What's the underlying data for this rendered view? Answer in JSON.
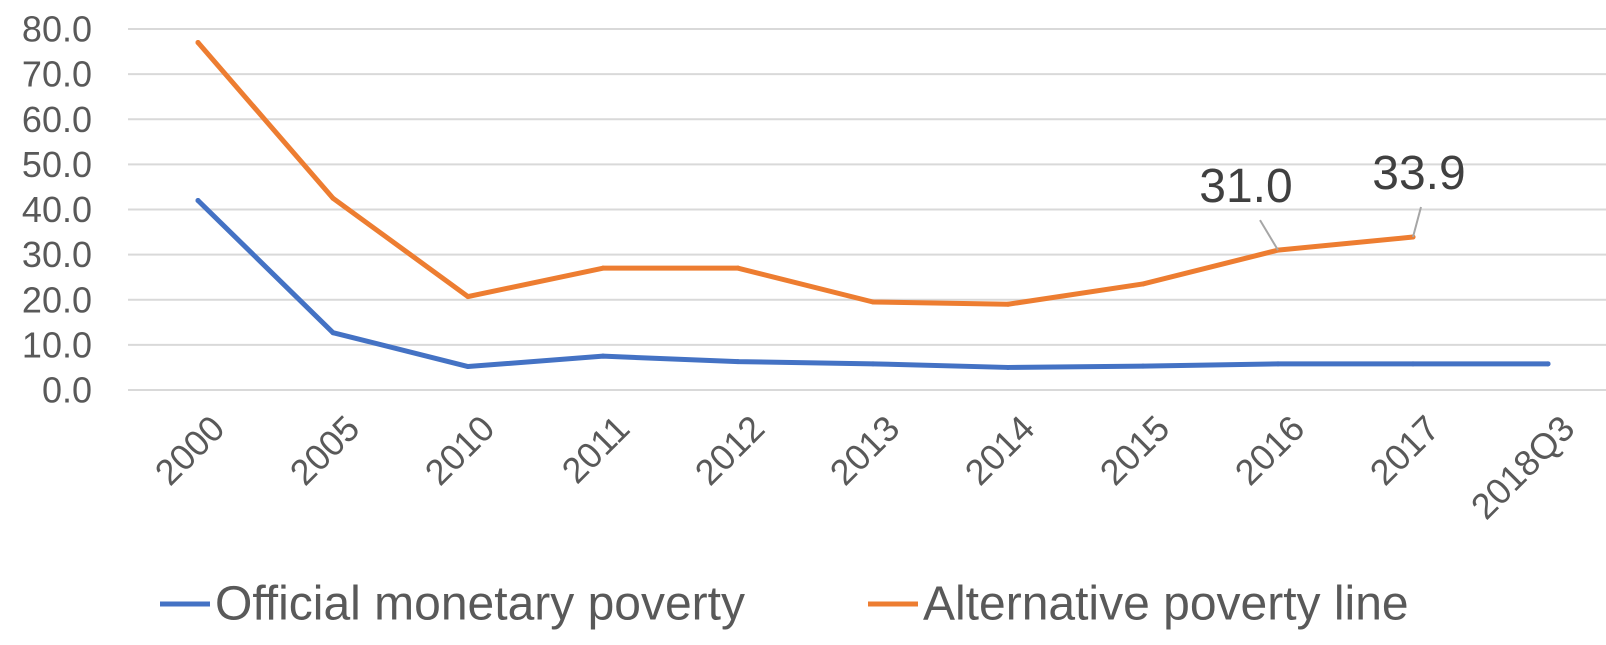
{
  "chart_data": {
    "type": "line",
    "title": "",
    "xlabel": "",
    "ylabel": "",
    "categories": [
      "2000",
      "2005",
      "2010",
      "2011",
      "2012",
      "2013",
      "2014",
      "2015",
      "2016",
      "2017",
      "2018Q3"
    ],
    "ylim": [
      0,
      80
    ],
    "yticks": [
      "0.0",
      "10.0",
      "20.0",
      "30.0",
      "40.0",
      "50.0",
      "60.0",
      "70.0",
      "80.0"
    ],
    "grid": true,
    "legend_position": "bottom",
    "series": [
      {
        "name": "Official monetary poverty",
        "color": "#4472c4",
        "values": [
          42,
          12.7,
          5.2,
          7.5,
          6.3,
          5.8,
          5.0,
          5.3,
          5.8,
          5.8,
          5.8
        ]
      },
      {
        "name": "Alternative poverty line",
        "color": "#ed7d31",
        "values": [
          77,
          42.5,
          20.7,
          27.0,
          27.0,
          19.5,
          19.0,
          23.5,
          31.0,
          33.9,
          null
        ]
      }
    ],
    "annotations": [
      {
        "series": 1,
        "category": "2016",
        "text": "31.0"
      },
      {
        "series": 1,
        "category": "2017",
        "text": "33.9"
      }
    ]
  }
}
